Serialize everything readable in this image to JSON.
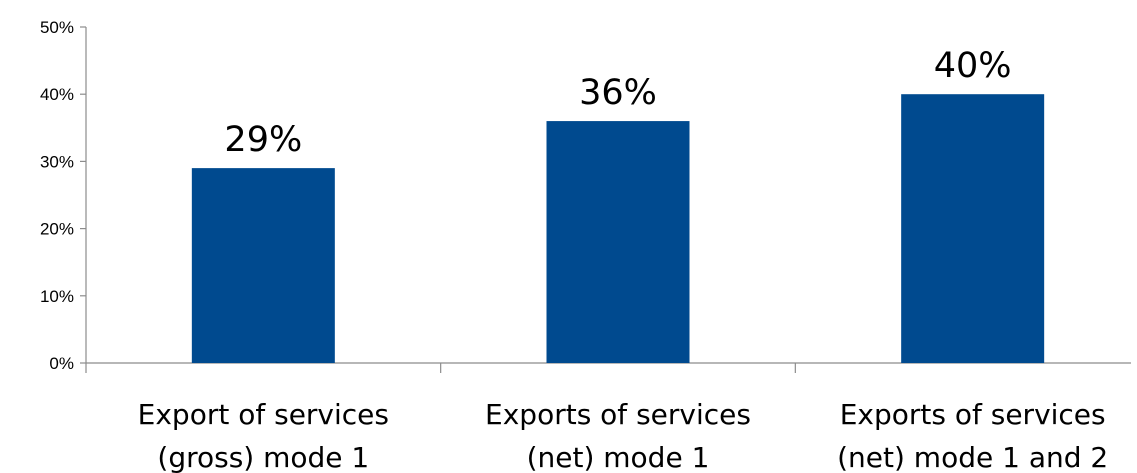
{
  "chart_data": {
    "type": "bar",
    "title": "",
    "xlabel": "",
    "ylabel": "",
    "categories": [
      [
        "Export of services",
        "(gross) mode 1"
      ],
      [
        "Exports of services",
        "(net) mode 1"
      ],
      [
        "Exports of services",
        "(net) mode 1 and 2"
      ]
    ],
    "values": [
      29,
      36,
      40
    ],
    "data_labels": [
      "29%",
      "36%",
      "40%"
    ],
    "ylim": [
      0,
      50
    ],
    "yticks": [
      0,
      10,
      20,
      30,
      40,
      50
    ],
    "ytick_labels": [
      "0%",
      "10%",
      "20%",
      "30%",
      "40%",
      "50%"
    ],
    "grid": false,
    "legend": "none",
    "colors": {
      "bar": "#004a8f",
      "axis": "#8c8c8c",
      "text": "#000000"
    }
  }
}
